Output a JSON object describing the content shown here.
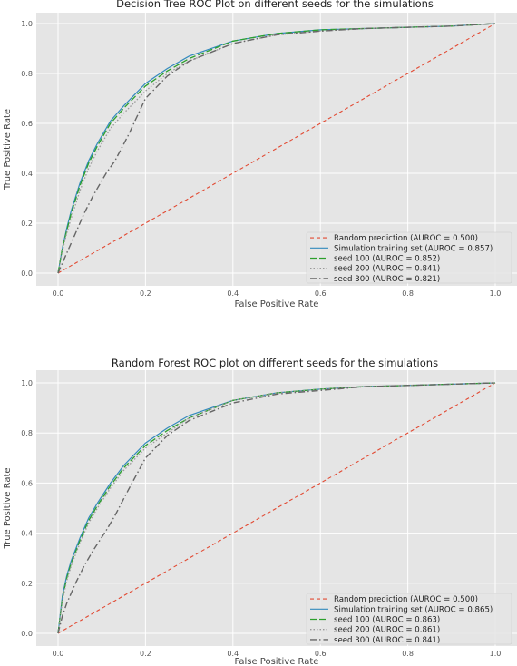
{
  "chart_data": [
    {
      "type": "line",
      "title": "Decision Tree ROC Plot on different seeds for the simulations",
      "xlabel": "False Positive Rate",
      "ylabel": "True Positive Rate",
      "xlim": [
        0,
        1
      ],
      "ylim": [
        0,
        1
      ],
      "xticks": [
        "0.0",
        "0.2",
        "0.4",
        "0.6",
        "0.8",
        "1.0"
      ],
      "yticks": [
        "0.0",
        "0.2",
        "0.4",
        "0.6",
        "0.8",
        "1.0"
      ],
      "grid": true,
      "legend_position": "lower-right",
      "series": [
        {
          "name": "Random prediction (AUROC = 0.500)",
          "color": "#e24a33",
          "dash": "dashed",
          "x": [
            0,
            1
          ],
          "y": [
            0,
            1
          ]
        },
        {
          "name": "Simulation training set (AUROC = 0.857)",
          "color": "#348abd",
          "dash": "solid",
          "x": [
            0,
            0.01,
            0.02,
            0.03,
            0.05,
            0.07,
            0.09,
            0.12,
            0.15,
            0.2,
            0.25,
            0.3,
            0.4,
            0.5,
            0.6,
            0.7,
            0.8,
            0.9,
            1.0
          ],
          "y": [
            0,
            0.1,
            0.18,
            0.25,
            0.36,
            0.45,
            0.52,
            0.61,
            0.67,
            0.76,
            0.82,
            0.87,
            0.93,
            0.96,
            0.975,
            0.98,
            0.985,
            0.99,
            1.0
          ]
        },
        {
          "name": "seed 100 (AUROC = 0.852)",
          "color": "#2ca02c",
          "dash": "longdash",
          "x": [
            0,
            0.01,
            0.02,
            0.03,
            0.05,
            0.07,
            0.09,
            0.12,
            0.15,
            0.2,
            0.25,
            0.3,
            0.4,
            0.5,
            0.6,
            0.7,
            0.8,
            0.9,
            1.0
          ],
          "y": [
            0,
            0.1,
            0.17,
            0.24,
            0.35,
            0.44,
            0.51,
            0.6,
            0.66,
            0.75,
            0.81,
            0.86,
            0.93,
            0.96,
            0.975,
            0.98,
            0.985,
            0.99,
            1.0
          ]
        },
        {
          "name": "seed 200 (AUROC = 0.841)",
          "color": "#999999",
          "dash": "dotted",
          "x": [
            0,
            0.01,
            0.02,
            0.03,
            0.05,
            0.07,
            0.09,
            0.12,
            0.15,
            0.2,
            0.25,
            0.3,
            0.4,
            0.5,
            0.6,
            0.7,
            0.8,
            0.9,
            1.0
          ],
          "y": [
            0,
            0.09,
            0.16,
            0.22,
            0.33,
            0.42,
            0.49,
            0.58,
            0.64,
            0.73,
            0.8,
            0.85,
            0.92,
            0.955,
            0.97,
            0.98,
            0.985,
            0.99,
            1.0
          ]
        },
        {
          "name": "seed 300 (AUROC = 0.821)",
          "color": "#666666",
          "dash": "dashdot",
          "x": [
            0,
            0.01,
            0.02,
            0.04,
            0.06,
            0.08,
            0.11,
            0.13,
            0.16,
            0.2,
            0.25,
            0.3,
            0.4,
            0.5,
            0.6,
            0.7,
            0.8,
            0.9,
            1.0
          ],
          "y": [
            0,
            0.04,
            0.08,
            0.16,
            0.24,
            0.31,
            0.4,
            0.45,
            0.55,
            0.7,
            0.79,
            0.85,
            0.92,
            0.955,
            0.97,
            0.98,
            0.985,
            0.99,
            1.0
          ]
        }
      ]
    },
    {
      "type": "line",
      "title": "Random Forest ROC plot on different seeds for the simulations",
      "xlabel": "False Positive Rate",
      "ylabel": "True Positive Rate",
      "xlim": [
        0,
        1
      ],
      "ylim": [
        0,
        1
      ],
      "xticks": [
        "0.0",
        "0.2",
        "0.4",
        "0.6",
        "0.8",
        "1.0"
      ],
      "yticks": [
        "0.0",
        "0.2",
        "0.4",
        "0.6",
        "0.8",
        "1.0"
      ],
      "grid": true,
      "legend_position": "lower-right",
      "series": [
        {
          "name": "Random prediction (AUROC = 0.500)",
          "color": "#e24a33",
          "dash": "dashed",
          "x": [
            0,
            1
          ],
          "y": [
            0,
            1
          ]
        },
        {
          "name": "Simulation training set (AUROC = 0.865)",
          "color": "#348abd",
          "dash": "solid",
          "x": [
            0,
            0.01,
            0.02,
            0.03,
            0.05,
            0.07,
            0.09,
            0.12,
            0.15,
            0.2,
            0.25,
            0.3,
            0.4,
            0.5,
            0.6,
            0.7,
            0.8,
            0.9,
            1.0
          ],
          "y": [
            0,
            0.15,
            0.23,
            0.29,
            0.38,
            0.46,
            0.52,
            0.6,
            0.67,
            0.76,
            0.82,
            0.87,
            0.93,
            0.96,
            0.975,
            0.985,
            0.99,
            0.995,
            1.0
          ]
        },
        {
          "name": "seed 100 (AUROC = 0.863)",
          "color": "#2ca02c",
          "dash": "longdash",
          "x": [
            0,
            0.01,
            0.02,
            0.03,
            0.05,
            0.07,
            0.09,
            0.12,
            0.15,
            0.2,
            0.25,
            0.3,
            0.4,
            0.5,
            0.6,
            0.7,
            0.8,
            0.9,
            1.0
          ],
          "y": [
            0,
            0.14,
            0.22,
            0.28,
            0.37,
            0.45,
            0.51,
            0.59,
            0.66,
            0.75,
            0.81,
            0.86,
            0.93,
            0.96,
            0.975,
            0.985,
            0.99,
            0.995,
            1.0
          ]
        },
        {
          "name": "seed 200 (AUROC = 0.861)",
          "color": "#999999",
          "dash": "dotted",
          "x": [
            0,
            0.01,
            0.02,
            0.03,
            0.05,
            0.07,
            0.09,
            0.12,
            0.15,
            0.2,
            0.25,
            0.3,
            0.4,
            0.5,
            0.6,
            0.7,
            0.8,
            0.9,
            1.0
          ],
          "y": [
            0,
            0.13,
            0.21,
            0.27,
            0.36,
            0.44,
            0.5,
            0.58,
            0.65,
            0.74,
            0.8,
            0.86,
            0.93,
            0.96,
            0.975,
            0.985,
            0.99,
            0.995,
            1.0
          ]
        },
        {
          "name": "seed 300 (AUROC = 0.841)",
          "color": "#666666",
          "dash": "dashdot",
          "x": [
            0,
            0.01,
            0.02,
            0.04,
            0.06,
            0.08,
            0.11,
            0.13,
            0.16,
            0.2,
            0.25,
            0.3,
            0.4,
            0.5,
            0.6,
            0.7,
            0.8,
            0.9,
            1.0
          ],
          "y": [
            0,
            0.07,
            0.12,
            0.2,
            0.27,
            0.33,
            0.41,
            0.47,
            0.57,
            0.7,
            0.79,
            0.85,
            0.92,
            0.955,
            0.97,
            0.985,
            0.99,
            0.995,
            1.0
          ]
        }
      ]
    }
  ]
}
